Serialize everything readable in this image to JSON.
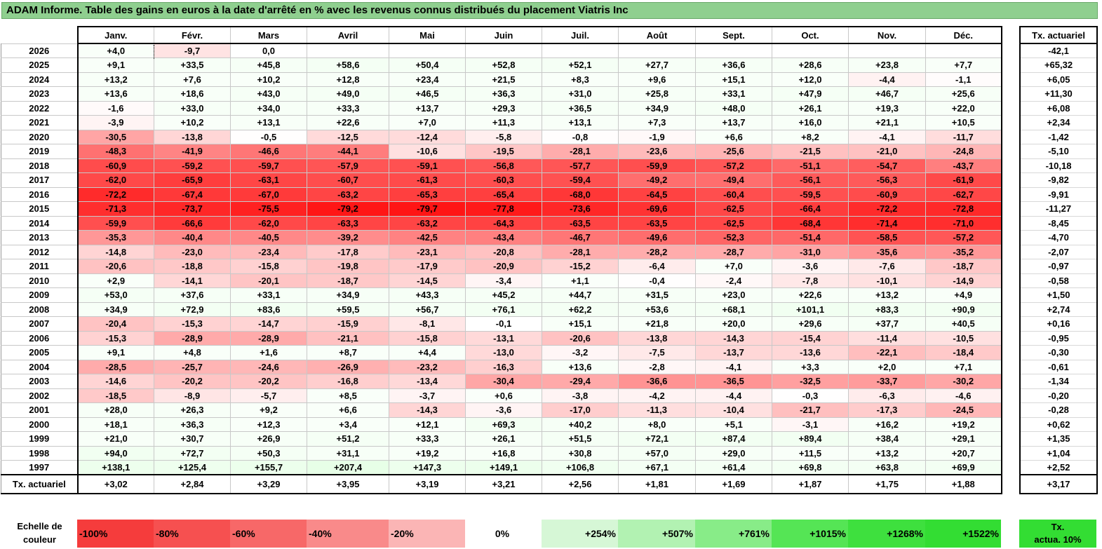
{
  "title": "ADAM Informe. Table des gains en euros à la date d'arrêté en % avec les revenus connus distribués du placement Viatris Inc",
  "months": [
    "Janv.",
    "Févr.",
    "Mars",
    "Avril",
    "Mai",
    "Juin",
    "Juil.",
    "Août",
    "Sept.",
    "Oct.",
    "Nov.",
    "Déc."
  ],
  "right_header": "Tx. actuariel",
  "rows": [
    {
      "year": "2026",
      "values": [
        "+4,0",
        "-9,7",
        "0,0",
        "",
        "",
        "",
        "",
        "",
        "",
        "",
        "",
        ""
      ],
      "actuariel": "-42,1"
    },
    {
      "year": "2025",
      "values": [
        "+9,1",
        "+33,5",
        "+45,8",
        "+58,6",
        "+50,4",
        "+52,8",
        "+52,1",
        "+27,7",
        "+36,6",
        "+28,6",
        "+23,8",
        "+7,7"
      ],
      "actuariel": "+65,32"
    },
    {
      "year": "2024",
      "values": [
        "+13,2",
        "+7,6",
        "+10,2",
        "+12,8",
        "+23,4",
        "+21,5",
        "+8,3",
        "+9,6",
        "+15,1",
        "+12,0",
        "-4,4",
        "-1,1"
      ],
      "actuariel": "+6,05"
    },
    {
      "year": "2023",
      "values": [
        "+13,6",
        "+18,6",
        "+43,0",
        "+49,0",
        "+46,5",
        "+36,3",
        "+31,0",
        "+25,8",
        "+33,1",
        "+47,9",
        "+46,7",
        "+25,6"
      ],
      "actuariel": "+11,30"
    },
    {
      "year": "2022",
      "values": [
        "-1,6",
        "+33,0",
        "+34,0",
        "+33,3",
        "+13,7",
        "+29,3",
        "+36,5",
        "+34,9",
        "+48,0",
        "+26,1",
        "+19,3",
        "+22,0"
      ],
      "actuariel": "+6,08"
    },
    {
      "year": "2021",
      "values": [
        "-3,9",
        "+10,2",
        "+13,1",
        "+22,6",
        "+7,0",
        "+11,3",
        "+13,1",
        "+7,3",
        "+13,7",
        "+16,0",
        "+21,1",
        "+10,5"
      ],
      "actuariel": "+2,34"
    },
    {
      "year": "2020",
      "values": [
        "-30,5",
        "-13,8",
        "-0,5",
        "-12,5",
        "-12,4",
        "-5,8",
        "-0,8",
        "-1,9",
        "+6,6",
        "+8,2",
        "-4,1",
        "-11,7"
      ],
      "actuariel": "-1,42"
    },
    {
      "year": "2019",
      "values": [
        "-48,3",
        "-41,9",
        "-46,6",
        "-44,1",
        "-10,6",
        "-19,5",
        "-28,1",
        "-23,6",
        "-25,6",
        "-21,5",
        "-21,0",
        "-24,8"
      ],
      "actuariel": "-5,10"
    },
    {
      "year": "2018",
      "values": [
        "-60,9",
        "-59,2",
        "-59,7",
        "-57,9",
        "-59,1",
        "-56,8",
        "-57,7",
        "-59,9",
        "-57,2",
        "-51,1",
        "-54,7",
        "-43,7"
      ],
      "actuariel": "-10,18"
    },
    {
      "year": "2017",
      "values": [
        "-62,0",
        "-65,9",
        "-63,1",
        "-60,7",
        "-61,3",
        "-60,3",
        "-59,4",
        "-49,2",
        "-49,4",
        "-56,1",
        "-56,3",
        "-61,9"
      ],
      "actuariel": "-9,82"
    },
    {
      "year": "2016",
      "values": [
        "-72,2",
        "-67,4",
        "-67,0",
        "-63,2",
        "-65,3",
        "-65,4",
        "-68,0",
        "-64,5",
        "-60,4",
        "-59,5",
        "-60,9",
        "-62,7"
      ],
      "actuariel": "-9,91"
    },
    {
      "year": "2015",
      "values": [
        "-71,3",
        "-73,7",
        "-75,5",
        "-79,2",
        "-79,7",
        "-77,8",
        "-73,6",
        "-69,6",
        "-62,5",
        "-66,4",
        "-72,2",
        "-72,8"
      ],
      "actuariel": "-11,27"
    },
    {
      "year": "2014",
      "values": [
        "-59,9",
        "-66,6",
        "-62,0",
        "-63,3",
        "-63,2",
        "-64,3",
        "-63,5",
        "-63,5",
        "-62,5",
        "-68,4",
        "-71,4",
        "-71,0"
      ],
      "actuariel": "-8,45"
    },
    {
      "year": "2013",
      "values": [
        "-35,3",
        "-40,4",
        "-40,5",
        "-39,2",
        "-42,5",
        "-43,4",
        "-46,7",
        "-49,6",
        "-52,3",
        "-51,4",
        "-58,5",
        "-57,2"
      ],
      "actuariel": "-4,70"
    },
    {
      "year": "2012",
      "values": [
        "-14,8",
        "-23,0",
        "-23,4",
        "-17,8",
        "-23,1",
        "-20,8",
        "-28,1",
        "-28,2",
        "-28,7",
        "-31,0",
        "-35,6",
        "-35,2"
      ],
      "actuariel": "-2,07"
    },
    {
      "year": "2011",
      "values": [
        "-20,6",
        "-18,8",
        "-15,8",
        "-19,8",
        "-17,9",
        "-20,9",
        "-15,2",
        "-6,4",
        "+7,0",
        "-3,6",
        "-7,6",
        "-18,7"
      ],
      "actuariel": "-0,97"
    },
    {
      "year": "2010",
      "values": [
        "+2,9",
        "-14,1",
        "-20,1",
        "-18,7",
        "-14,5",
        "-3,4",
        "+1,1",
        "-0,4",
        "-2,4",
        "-7,8",
        "-10,1",
        "-14,9"
      ],
      "actuariel": "-0,58"
    },
    {
      "year": "2009",
      "values": [
        "+53,0",
        "+37,6",
        "+33,1",
        "+34,9",
        "+43,3",
        "+45,2",
        "+44,7",
        "+31,5",
        "+23,0",
        "+22,6",
        "+13,2",
        "+4,9"
      ],
      "actuariel": "+1,50"
    },
    {
      "year": "2008",
      "values": [
        "+34,9",
        "+72,9",
        "+83,6",
        "+59,5",
        "+56,7",
        "+76,1",
        "+62,2",
        "+53,6",
        "+68,1",
        "+101,1",
        "+83,3",
        "+90,9"
      ],
      "actuariel": "+2,74"
    },
    {
      "year": "2007",
      "values": [
        "-20,4",
        "-15,3",
        "-14,7",
        "-15,9",
        "-8,1",
        "-0,1",
        "+15,1",
        "+21,8",
        "+20,0",
        "+29,6",
        "+37,7",
        "+40,5"
      ],
      "actuariel": "+0,16"
    },
    {
      "year": "2006",
      "values": [
        "-15,3",
        "-28,9",
        "-28,9",
        "-21,1",
        "-15,8",
        "-13,1",
        "-20,6",
        "-13,8",
        "-14,3",
        "-15,4",
        "-11,4",
        "-10,5"
      ],
      "actuariel": "-0,95"
    },
    {
      "year": "2005",
      "values": [
        "+9,1",
        "+4,8",
        "+1,6",
        "+8,7",
        "+4,4",
        "-13,0",
        "-3,2",
        "-7,5",
        "-13,7",
        "-13,6",
        "-22,1",
        "-18,4"
      ],
      "actuariel": "-0,30"
    },
    {
      "year": "2004",
      "values": [
        "-28,5",
        "-25,7",
        "-24,6",
        "-26,9",
        "-23,2",
        "-16,3",
        "+13,6",
        "-2,8",
        "-4,1",
        "+3,3",
        "+2,0",
        "+7,1"
      ],
      "actuariel": "-0,61"
    },
    {
      "year": "2003",
      "values": [
        "-14,6",
        "-20,2",
        "-20,2",
        "-16,8",
        "-13,4",
        "-30,4",
        "-29,4",
        "-36,6",
        "-36,5",
        "-32,5",
        "-33,7",
        "-30,2"
      ],
      "actuariel": "-1,34"
    },
    {
      "year": "2002",
      "values": [
        "-18,5",
        "-8,9",
        "-5,7",
        "+8,5",
        "-3,7",
        "+0,6",
        "-3,8",
        "-4,2",
        "-4,4",
        "-0,3",
        "-6,3",
        "-4,6"
      ],
      "actuariel": "-0,20"
    },
    {
      "year": "2001",
      "values": [
        "+28,0",
        "+26,3",
        "+9,2",
        "+6,6",
        "-14,3",
        "-3,6",
        "-17,0",
        "-11,3",
        "-10,4",
        "-21,7",
        "-17,3",
        "-24,5"
      ],
      "actuariel": "-0,28"
    },
    {
      "year": "2000",
      "values": [
        "+18,1",
        "+36,3",
        "+12,3",
        "+3,4",
        "+12,1",
        "+69,3",
        "+40,2",
        "+8,0",
        "+5,1",
        "-3,1",
        "+16,2",
        "+19,2"
      ],
      "actuariel": "+0,62"
    },
    {
      "year": "1999",
      "values": [
        "+21,0",
        "+30,7",
        "+26,9",
        "+51,2",
        "+33,3",
        "+26,1",
        "+51,5",
        "+72,1",
        "+87,4",
        "+89,4",
        "+38,4",
        "+29,1"
      ],
      "actuariel": "+1,35"
    },
    {
      "year": "1998",
      "values": [
        "+94,0",
        "+72,7",
        "+50,3",
        "+31,1",
        "+19,2",
        "+16,8",
        "+30,8",
        "+57,0",
        "+29,0",
        "+11,5",
        "+13,2",
        "+20,7"
      ],
      "actuariel": "+1,04"
    },
    {
      "year": "1997",
      "values": [
        "+138,1",
        "+125,4",
        "+155,7",
        "+207,4",
        "+147,3",
        "+149,1",
        "+106,8",
        "+67,1",
        "+61,4",
        "+69,8",
        "+63,8",
        "+69,9"
      ],
      "actuariel": "+2,52"
    }
  ],
  "total_row": {
    "label": "Tx. actuariel",
    "values": [
      "+3,02",
      "+2,84",
      "+3,29",
      "+3,95",
      "+3,19",
      "+3,21",
      "+2,56",
      "+1,81",
      "+1,69",
      "+1,87",
      "+1,75",
      "+1,88"
    ],
    "actuariel": "+3,17"
  },
  "scale": {
    "label_line1": "Echelle de",
    "label_line2": "couleur",
    "cells": [
      {
        "label": "-100%",
        "color": "#f53c3c"
      },
      {
        "label": "-80%",
        "color": "#f65050"
      },
      {
        "label": "-60%",
        "color": "#f76868"
      },
      {
        "label": "-40%",
        "color": "#f98a8a"
      },
      {
        "label": "-20%",
        "color": "#fbb5b5"
      },
      {
        "label": "0%",
        "color": "#ffffff"
      },
      {
        "label": "+254%",
        "color": "#d6f7d6"
      },
      {
        "label": "+507%",
        "color": "#b2f2b2"
      },
      {
        "label": "+761%",
        "color": "#88ec88"
      },
      {
        "label": "+1015%",
        "color": "#55e555"
      },
      {
        "label": "+1268%",
        "color": "#3ee03e"
      },
      {
        "label": "+1522%",
        "color": "#33dd33"
      }
    ],
    "actua_line1": "Tx.",
    "actua_line2": "actua. 10%"
  }
}
